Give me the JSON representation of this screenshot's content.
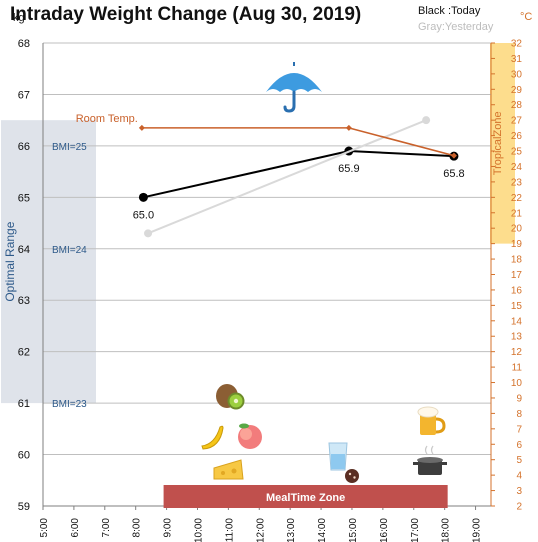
{
  "title": "Intraday Weight Change (Aug 30, 2019)",
  "legend": {
    "today": "Black :Today",
    "yesterday": "Gray:Yesterday"
  },
  "units": {
    "left": "kg",
    "right": "°C"
  },
  "colors": {
    "today": "#000000",
    "yesterday": "#d9d9d9",
    "room_temp": "#c9612b",
    "optimal_band": "#dfe3ea",
    "optimal_text": "#2e5a8a",
    "tropical_band": "#fddd8d",
    "tropical_text": "#d4722b",
    "mealtime": "#c0504d",
    "grid": "#bfbfbf"
  },
  "icons": [
    "umbrella-icon",
    "kiwi-icon",
    "banana-icon",
    "peach-icon",
    "cheese-icon",
    "water-glass-icon",
    "cookie-icon",
    "beer-icon",
    "cooking-pot-icon"
  ],
  "chart_data": {
    "type": "line",
    "x_ticks": [
      "5:00",
      "6:00",
      "7:00",
      "8:00",
      "9:00",
      "10:00",
      "11:00",
      "12:00",
      "13:00",
      "14:00",
      "15:00",
      "16:00",
      "17:00",
      "18:00",
      "19:00"
    ],
    "x_range": [
      5,
      19.5
    ],
    "y_left_range": [
      59,
      68
    ],
    "y_left_ticks": [
      59,
      60,
      61,
      62,
      63,
      64,
      65,
      66,
      67,
      68
    ],
    "y_right_range": [
      2,
      32
    ],
    "y_right_ticks": [
      2,
      3,
      4,
      5,
      6,
      7,
      8,
      9,
      10,
      11,
      12,
      13,
      14,
      15,
      16,
      17,
      18,
      19,
      20,
      21,
      22,
      23,
      24,
      25,
      26,
      27,
      28,
      29,
      30,
      31,
      32
    ],
    "series": [
      {
        "name": "Black :Today",
        "axis": "left",
        "points": [
          {
            "x": 8.25,
            "y": 65.0,
            "label": "65.0"
          },
          {
            "x": 14.9,
            "y": 65.9,
            "label": "65.9"
          },
          {
            "x": 18.3,
            "y": 65.8,
            "label": "65.8"
          }
        ]
      },
      {
        "name": "Gray:Yesterday",
        "axis": "left",
        "points": [
          {
            "x": 8.4,
            "y": 64.3
          },
          {
            "x": 17.4,
            "y": 66.5
          }
        ]
      },
      {
        "name": "Room Temp.",
        "axis": "right",
        "points": [
          {
            "x": 8.2,
            "y": 26.5
          },
          {
            "x": 14.9,
            "y": 26.5
          },
          {
            "x": 18.3,
            "y": 24.7
          }
        ]
      }
    ],
    "bands": {
      "optimal": {
        "label": "Optimal Range",
        "from": 61.0,
        "to": 66.5
      },
      "bmi_lines": [
        {
          "label": "BMI=25",
          "y": 66.0
        },
        {
          "label": "BMI=24",
          "y": 64.0
        },
        {
          "label": "BMI=23",
          "y": 61.0
        }
      ],
      "tropical": {
        "label": "TropicalZone",
        "from": 19,
        "to": 32
      },
      "mealtime": {
        "label": "MealTime Zone",
        "x_from": 9.0,
        "x_to": 18.0
      }
    }
  }
}
